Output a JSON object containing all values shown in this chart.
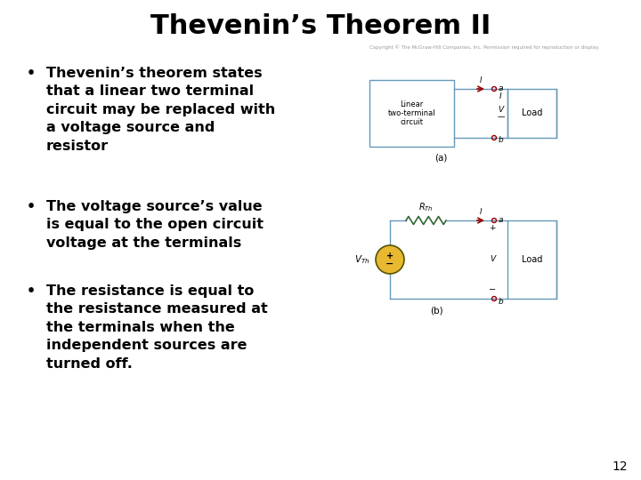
{
  "title": "Thevenin’s Theorem II",
  "title_fontsize": 22,
  "title_fontweight": "bold",
  "bg_color": "#ffffff",
  "bullet1": "Thevenin’s theorem states\nthat a linear two terminal\ncircuit may be replaced with\na voltage source and\nresistor",
  "bullet2": "The voltage source’s value\nis equal to the open circuit\nvoltage at the terminals",
  "bullet3": "The resistance is equal to\nthe resistance measured at\nthe terminals when the\nindependent sources are\nturned off.",
  "bullet_fontsize": 11.5,
  "page_number": "12",
  "copyright_text": "Copyright © The McGraw-Hill Companies, Inc. Permission required for reproduction or display.",
  "diagram_color": "#6699bb",
  "arrow_color": "#990000",
  "resistor_color": "#336633",
  "source_fill": "#e8b830",
  "text_color": "#000000",
  "label_color": "#555555"
}
